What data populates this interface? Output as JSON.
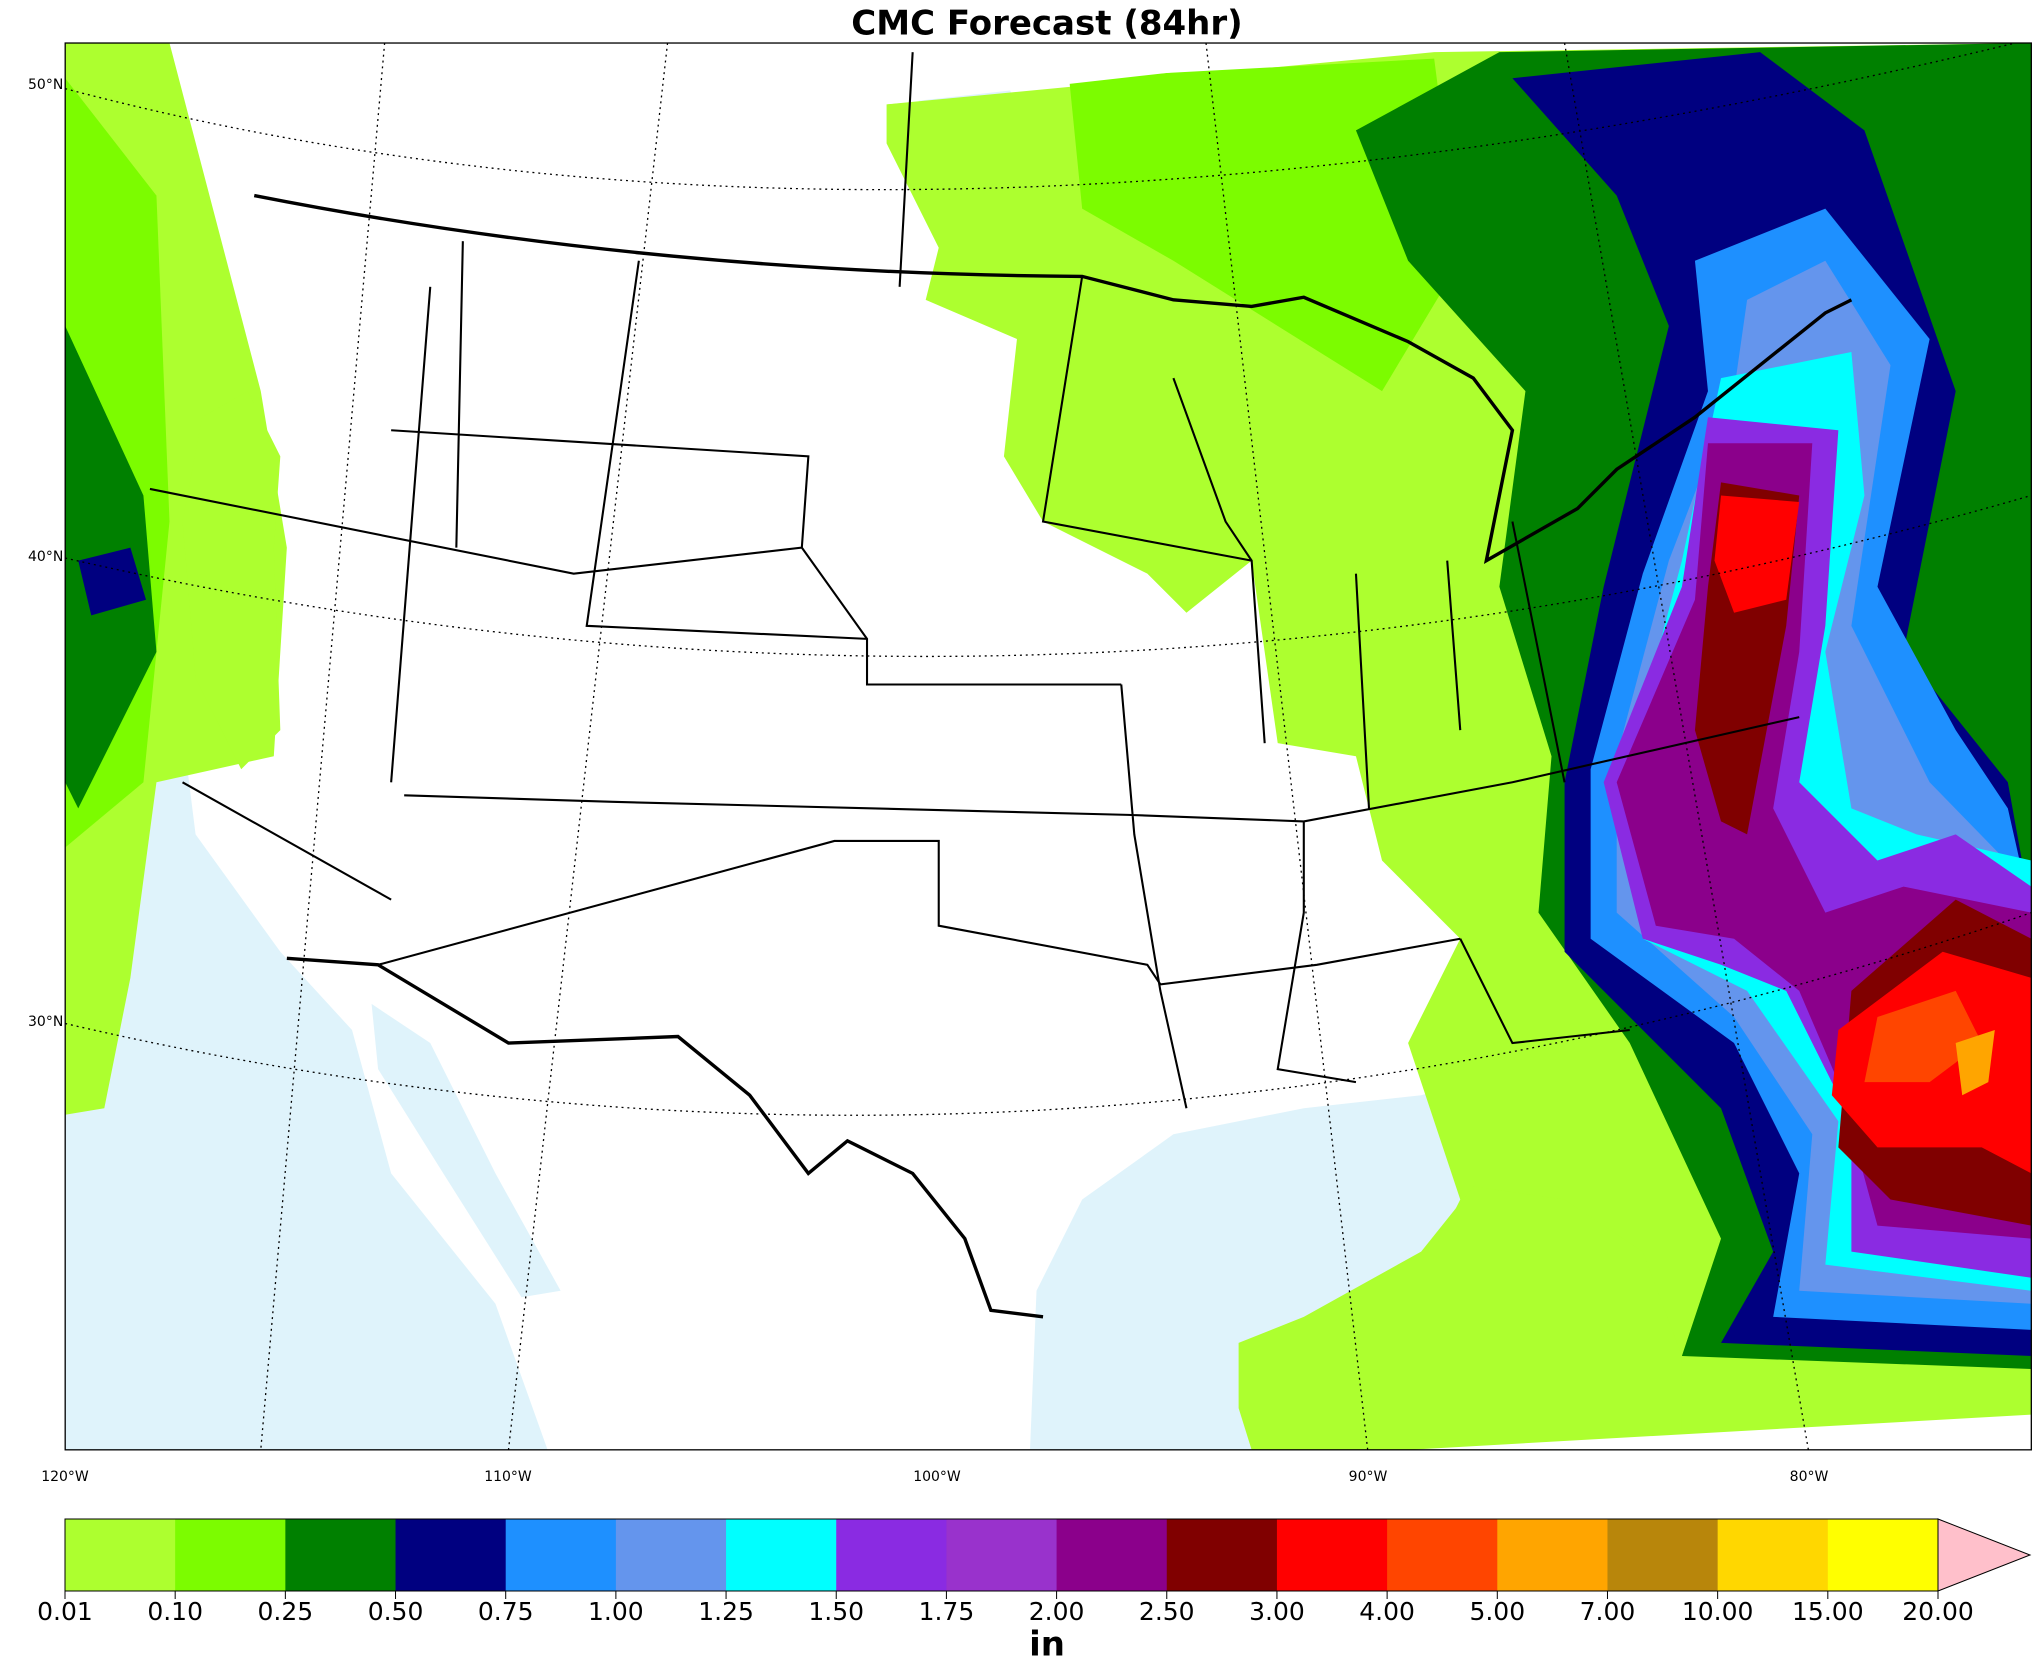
{
  "title": "CMC Forecast (84hr)",
  "map": {
    "lat_labels": [
      "50°N",
      "40°N",
      "30°N"
    ],
    "lon_labels": [
      "120°W",
      "110°W",
      "100°W",
      "90°W",
      "80°W"
    ]
  },
  "colorbar": {
    "label": "in",
    "ticks": [
      {
        "value": 0.01,
        "label": "0.01"
      },
      {
        "value": 0.1,
        "label": "0.10"
      },
      {
        "value": 0.25,
        "label": "0.25"
      },
      {
        "value": 0.5,
        "label": "0.50"
      },
      {
        "value": 0.75,
        "label": "0.75"
      },
      {
        "value": 1,
        "label": "1.00"
      },
      {
        "value": 1.25,
        "label": "1.25"
      },
      {
        "value": 1.5,
        "label": "1.50"
      },
      {
        "value": 1.75,
        "label": "1.75"
      },
      {
        "value": 2,
        "label": "2.00"
      },
      {
        "value": 2.5,
        "label": "2.50"
      },
      {
        "value": 3,
        "label": "3.00"
      },
      {
        "value": 4,
        "label": "4.00"
      },
      {
        "value": 5,
        "label": "5.00"
      },
      {
        "value": 7,
        "label": "7.00"
      },
      {
        "value": 10,
        "label": "10.00"
      },
      {
        "value": 15,
        "label": "15.00"
      },
      {
        "value": 20,
        "label": "20.00"
      }
    ],
    "colors": [
      "#adff2f",
      "#7cfc00",
      "#008000",
      "#000080",
      "#1e90ff",
      "#6495ed",
      "#00ffff",
      "#8a2be2",
      "#9932cc",
      "#8b008b",
      "#800000",
      "#ff0000",
      "#ff4500",
      "#ffa500",
      "#b8860b",
      "#ffd700",
      "#ffff00"
    ],
    "extend_color": "#ffc0cb"
  }
}
